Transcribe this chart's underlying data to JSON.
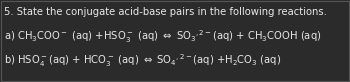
{
  "title": "5. State the conjugate acid-base pairs in the following reactions.",
  "bg_color": "#2b2b2b",
  "text_color": "#e8e8e8",
  "border_color": "#555555",
  "title_fontsize": 7.2,
  "body_fontsize": 7.2,
  "line_a_parts": [
    {
      "text": "a) CH",
      "style": "normal"
    },
    {
      "text": "3",
      "style": "sub"
    },
    {
      "text": "COO",
      "style": "normal"
    },
    {
      "text": "⁻",
      "style": "sup"
    },
    {
      "text": " (aq) +HSO",
      "style": "normal"
    },
    {
      "text": "3",
      "style": "sub"
    },
    {
      "text": "⁻",
      "style": "sup"
    },
    {
      "text": " (aq) ⇔ SO",
      "style": "normal"
    },
    {
      "text": "3",
      "style": "sub"
    },
    {
      "text": ",²⁻",
      "style": "sup"
    },
    {
      "text": "(aq) + CH",
      "style": "normal"
    },
    {
      "text": "3",
      "style": "sub"
    },
    {
      "text": "COOH (aq)",
      "style": "normal"
    }
  ],
  "line_b_parts": [
    {
      "text": "b) HSO",
      "style": "normal"
    },
    {
      "text": "4",
      "style": "sub"
    },
    {
      "text": "⁻",
      "style": "sup"
    },
    {
      "text": "(aq) + HCO",
      "style": "normal"
    },
    {
      "text": "3",
      "style": "sub"
    },
    {
      "text": "⁻",
      "style": "sup"
    },
    {
      "text": " (aq) ⇔ SO",
      "style": "normal"
    },
    {
      "text": "4",
      "style": "sub"
    },
    {
      "text": ",²⁻",
      "style": "sup"
    },
    {
      "text": "(aq) +H",
      "style": "normal"
    },
    {
      "text": "2",
      "style": "sub"
    },
    {
      "text": "CO",
      "style": "normal"
    },
    {
      "text": "3",
      "style": "sub"
    },
    {
      "text": " (aq)",
      "style": "normal"
    }
  ]
}
